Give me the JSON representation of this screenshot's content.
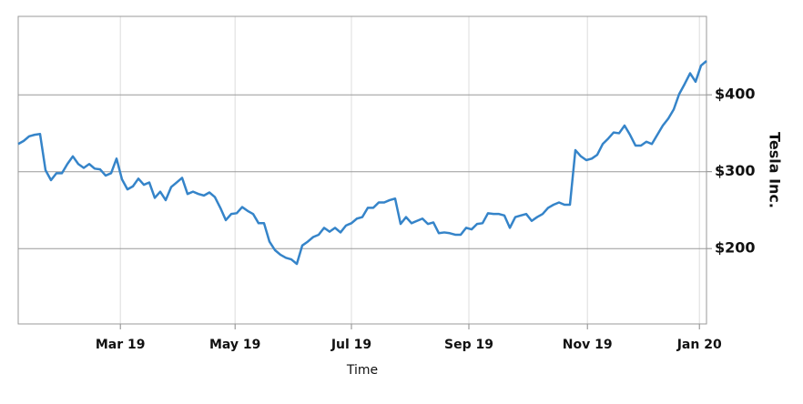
{
  "chart_data": {
    "type": "line",
    "x_label": "Time",
    "y_label": "Tesla Inc.",
    "series": [
      {
        "name": "Tesla Inc.",
        "color": "#3584c9",
        "values": [
          336,
          340,
          346,
          348,
          349,
          302,
          289,
          298,
          298,
          310,
          320,
          310,
          305,
          310,
          304,
          303,
          295,
          298,
          317,
          290,
          277,
          281,
          291,
          283,
          286,
          266,
          274,
          263,
          280,
          286,
          292,
          271,
          274,
          271,
          269,
          273,
          267,
          253,
          237,
          245,
          246,
          254,
          249,
          245,
          233,
          233,
          209,
          198,
          192,
          188,
          186,
          180,
          204,
          209,
          215,
          218,
          227,
          222,
          227,
          221,
          230,
          233,
          239,
          241,
          253,
          253,
          260,
          260,
          263,
          265,
          232,
          241,
          233,
          236,
          239,
          232,
          234,
          220,
          221,
          220,
          218,
          218,
          227,
          225,
          232,
          233,
          246,
          245,
          245,
          243,
          227,
          241,
          243,
          245,
          236,
          241,
          245,
          253,
          257,
          260,
          257,
          257,
          328,
          320,
          315,
          317,
          322,
          336,
          343,
          351,
          350,
          360,
          348,
          334,
          334,
          339,
          336,
          348,
          360,
          369,
          381,
          401,
          414,
          428,
          417,
          438,
          444
        ]
      }
    ],
    "xlim": [
      0,
      126
    ],
    "xticks": [
      {
        "value": 18.7,
        "label": "Mar 19"
      },
      {
        "value": 39.7,
        "label": "May 19"
      },
      {
        "value": 61,
        "label": "Jul 19"
      },
      {
        "value": 82.5,
        "label": "Sep 19"
      },
      {
        "value": 104.2,
        "label": "Nov 19"
      },
      {
        "value": 124.7,
        "label": "Jan 20"
      }
    ],
    "ylim": [
      102,
      502
    ],
    "yticks": [
      {
        "value": 200,
        "label": "$200"
      },
      {
        "value": 300,
        "label": "$300"
      },
      {
        "value": 400,
        "label": "$400"
      }
    ],
    "grid": true
  }
}
